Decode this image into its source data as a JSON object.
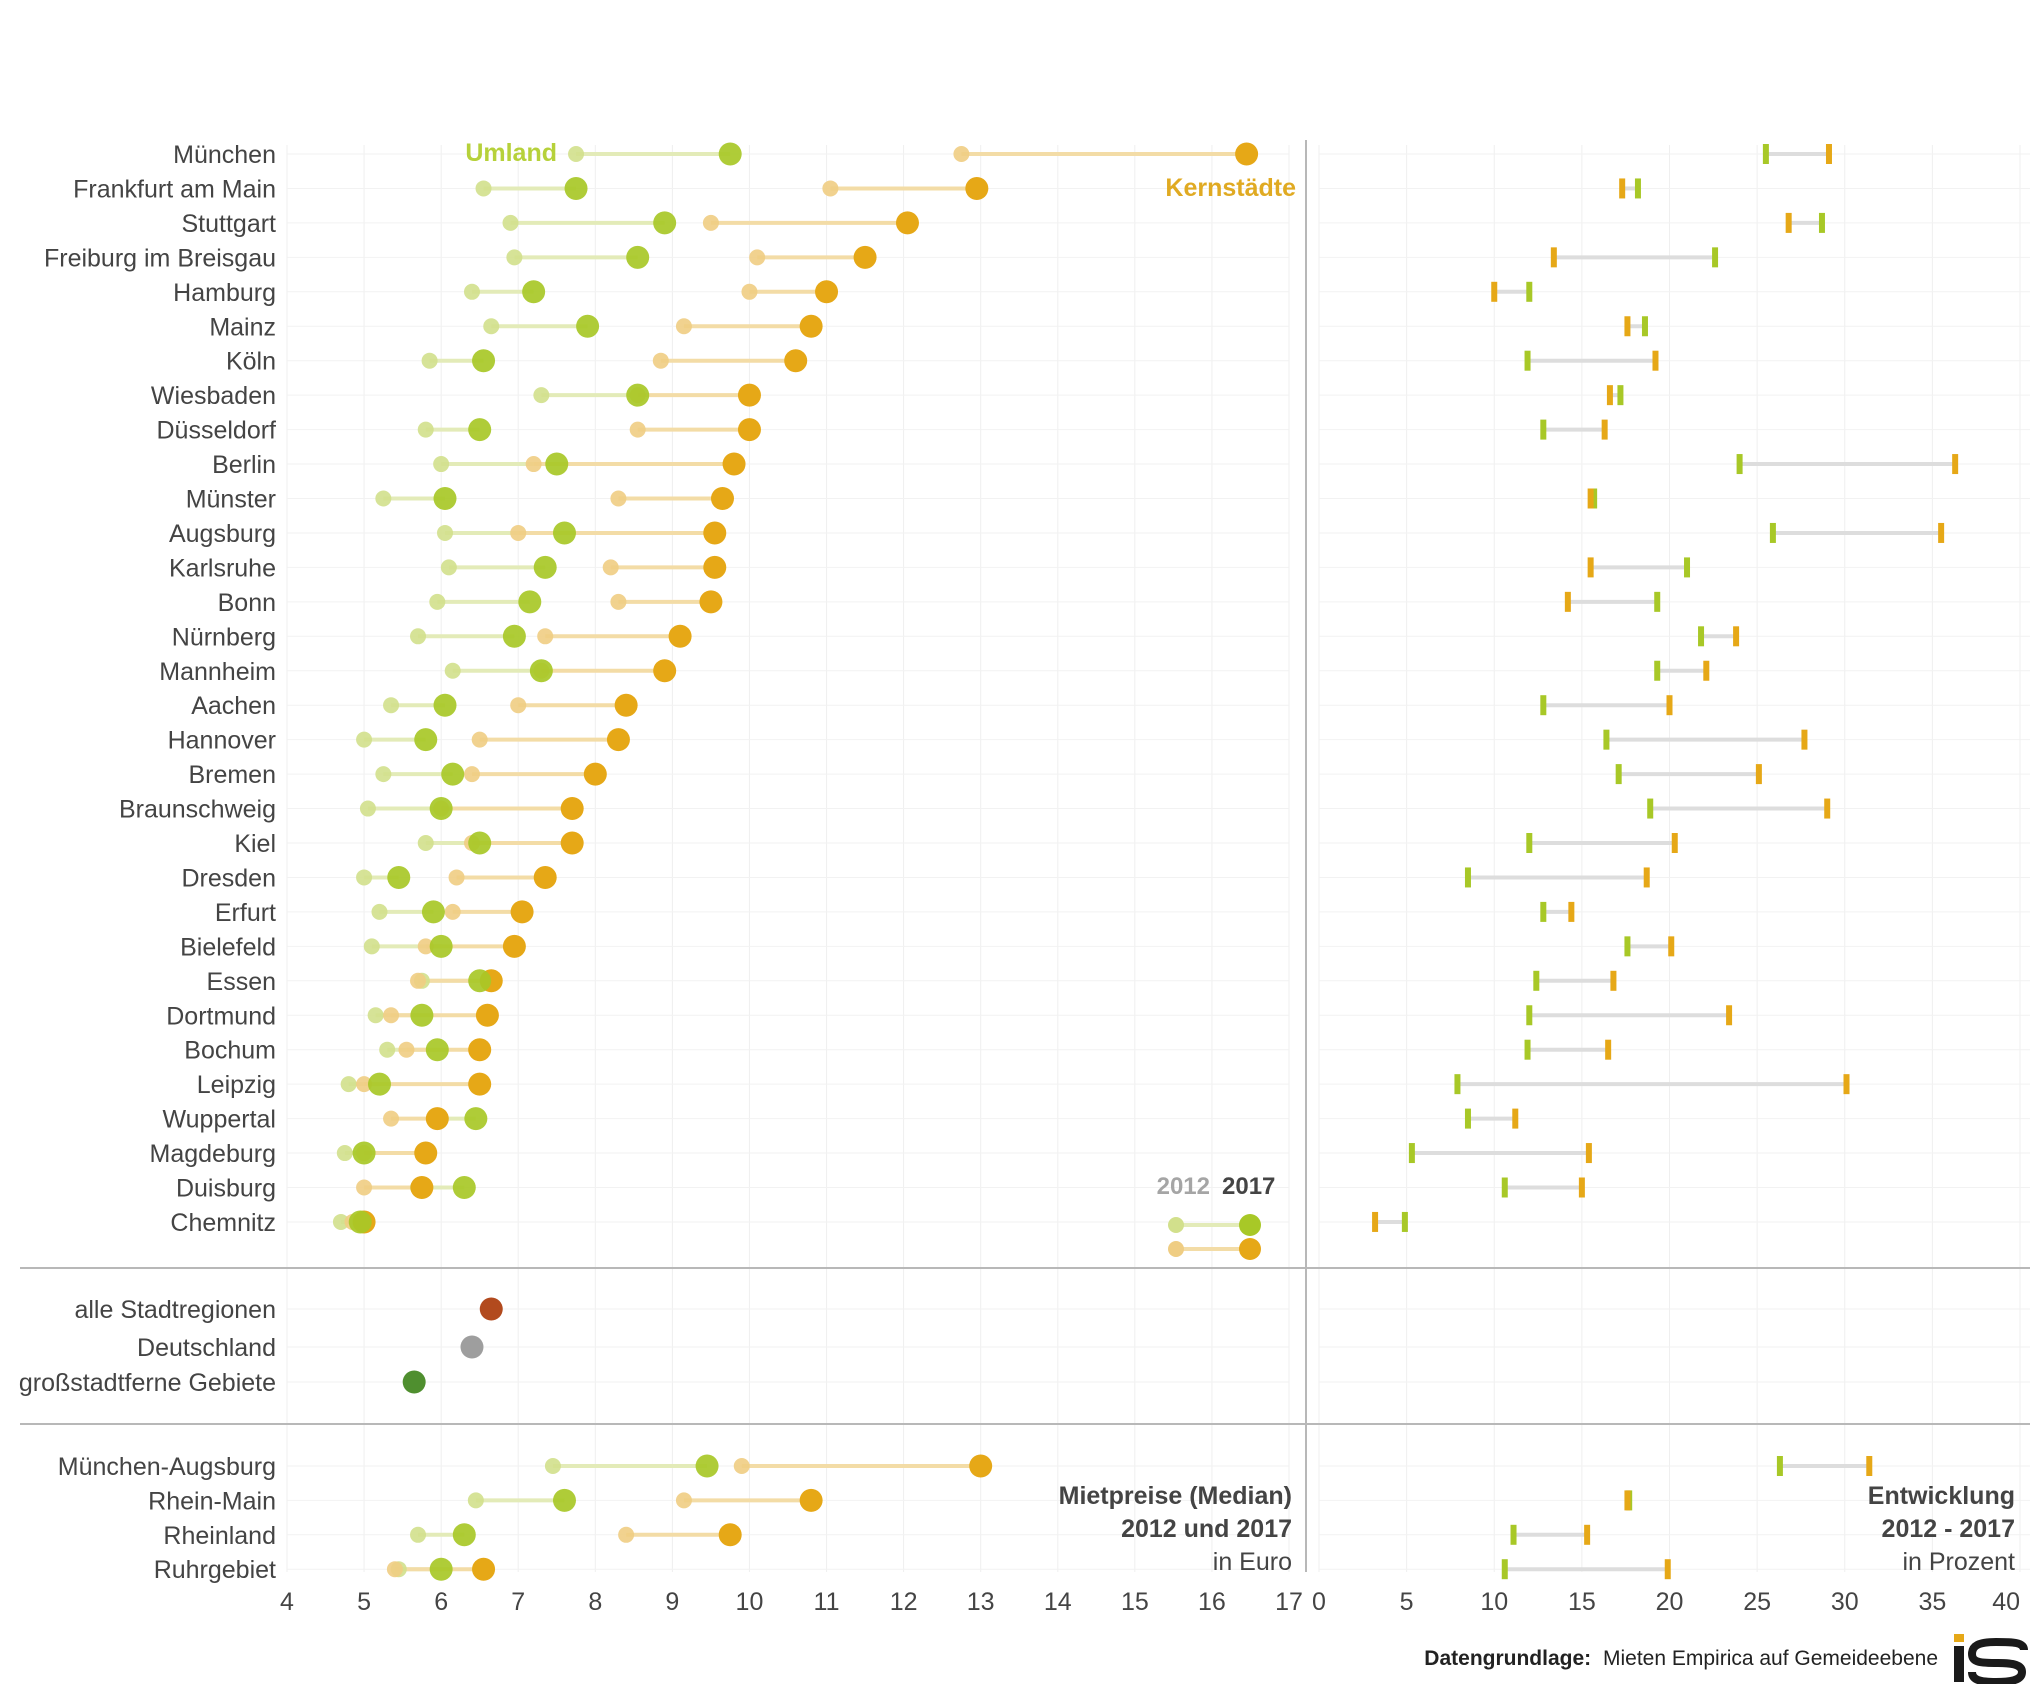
{
  "chart_data": [
    {
      "type": "dumbbell",
      "title": "Mietpreise (Median)",
      "subtitle": "2012 und 2017",
      "unit_note": "in Euro",
      "xlim": [
        4,
        17
      ],
      "xticks": [
        4,
        5,
        6,
        7,
        8,
        9,
        10,
        11,
        12,
        13,
        14,
        15,
        16,
        17
      ],
      "series_labels": {
        "umland": "Umland",
        "kern": "Kernstädte"
      },
      "legend": {
        "year_a": "2012",
        "year_b": "2017"
      },
      "colors": {
        "umland_2017": "#a8c827",
        "umland_2012": "#d2e08c",
        "umland_line": "#e3ebb8",
        "kern_2017": "#e6a817",
        "kern_2012": "#efcd83",
        "kern_line": "#f3dca6",
        "alle": "#b24a1e",
        "deutschland": "#9e9e9e",
        "grossstadtfern": "#4f8f2f",
        "umland_label": "#b6d13a",
        "kern_label": "#e0aa22"
      },
      "cities": [
        {
          "name": "München",
          "u2012": 7.75,
          "u2017": 9.75,
          "k2012": 12.75,
          "k2017": 16.45
        },
        {
          "name": "Frankfurt am Main",
          "u2012": 6.55,
          "u2017": 7.75,
          "k2012": 11.05,
          "k2017": 12.95
        },
        {
          "name": "Stuttgart",
          "u2012": 6.9,
          "u2017": 8.9,
          "k2012": 9.5,
          "k2017": 12.05
        },
        {
          "name": "Freiburg im Breisgau",
          "u2012": 6.95,
          "u2017": 8.55,
          "k2012": 10.1,
          "k2017": 11.5
        },
        {
          "name": "Hamburg",
          "u2012": 6.4,
          "u2017": 7.2,
          "k2012": 10.0,
          "k2017": 11.0
        },
        {
          "name": "Mainz",
          "u2012": 6.65,
          "u2017": 7.9,
          "k2012": 9.15,
          "k2017": 10.8
        },
        {
          "name": "Köln",
          "u2012": 5.85,
          "u2017": 6.55,
          "k2012": 8.85,
          "k2017": 10.6
        },
        {
          "name": "Wiesbaden",
          "u2012": 7.3,
          "u2017": 8.55,
          "k2012": 8.55,
          "k2017": 10.0
        },
        {
          "name": "Düsseldorf",
          "u2012": 5.8,
          "u2017": 6.5,
          "k2012": 8.55,
          "k2017": 10.0
        },
        {
          "name": "Berlin",
          "u2012": 6.0,
          "u2017": 7.5,
          "k2012": 7.2,
          "k2017": 9.8
        },
        {
          "name": "Münster",
          "u2012": 5.25,
          "u2017": 6.05,
          "k2012": 8.3,
          "k2017": 9.65
        },
        {
          "name": "Augsburg",
          "u2012": 6.05,
          "u2017": 7.6,
          "k2012": 7.0,
          "k2017": 9.55
        },
        {
          "name": "Karlsruhe",
          "u2012": 6.1,
          "u2017": 7.35,
          "k2012": 8.2,
          "k2017": 9.55
        },
        {
          "name": "Bonn",
          "u2012": 5.95,
          "u2017": 7.15,
          "k2012": 8.3,
          "k2017": 9.5
        },
        {
          "name": "Nürnberg",
          "u2012": 5.7,
          "u2017": 6.95,
          "k2012": 7.35,
          "k2017": 9.1
        },
        {
          "name": "Mannheim",
          "u2012": 6.15,
          "u2017": 7.3,
          "k2012": 7.3,
          "k2017": 8.9
        },
        {
          "name": "Aachen",
          "u2012": 5.35,
          "u2017": 6.05,
          "k2012": 7.0,
          "k2017": 8.4
        },
        {
          "name": "Hannover",
          "u2012": 5.0,
          "u2017": 5.8,
          "k2012": 6.5,
          "k2017": 8.3
        },
        {
          "name": "Bremen",
          "u2012": 5.25,
          "u2017": 6.15,
          "k2012": 6.4,
          "k2017": 8.0
        },
        {
          "name": "Braunschweig",
          "u2012": 5.05,
          "u2017": 6.0,
          "k2012": 6.0,
          "k2017": 7.7
        },
        {
          "name": "Kiel",
          "u2012": 5.8,
          "u2017": 6.5,
          "k2012": 6.4,
          "k2017": 7.7
        },
        {
          "name": "Dresden",
          "u2012": 5.0,
          "u2017": 5.45,
          "k2012": 6.2,
          "k2017": 7.35
        },
        {
          "name": "Erfurt",
          "u2012": 5.2,
          "u2017": 5.9,
          "k2012": 6.15,
          "k2017": 7.05
        },
        {
          "name": "Bielefeld",
          "u2012": 5.1,
          "u2017": 6.0,
          "k2012": 5.8,
          "k2017": 6.95
        },
        {
          "name": "Essen",
          "u2012": 5.75,
          "u2017": 6.5,
          "k2012": 5.7,
          "k2017": 6.65
        },
        {
          "name": "Dortmund",
          "u2012": 5.15,
          "u2017": 5.75,
          "k2012": 5.35,
          "k2017": 6.6
        },
        {
          "name": "Bochum",
          "u2012": 5.3,
          "u2017": 5.95,
          "k2012": 5.55,
          "k2017": 6.5
        },
        {
          "name": "Leipzig",
          "u2012": 4.8,
          "u2017": 5.2,
          "k2012": 5.0,
          "k2017": 6.5
        },
        {
          "name": "Wuppertal",
          "u2012": 5.95,
          "u2017": 6.45,
          "k2012": 5.35,
          "k2017": 5.95
        },
        {
          "name": "Magdeburg",
          "u2012": 4.75,
          "u2017": 5.0,
          "k2012": 5.0,
          "k2017": 5.8
        },
        {
          "name": "Duisburg",
          "u2012": 5.7,
          "u2017": 6.3,
          "k2012": 5.0,
          "k2017": 5.75
        },
        {
          "name": "Chemnitz",
          "u2012": 4.7,
          "u2017": 4.95,
          "k2012": 4.85,
          "k2017": 5.0
        }
      ],
      "summary": [
        {
          "name": "alle Stadtregionen",
          "value": 6.65,
          "color_key": "alle"
        },
        {
          "name": "Deutschland",
          "value": 6.4,
          "color_key": "deutschland"
        },
        {
          "name": "großstadtferne Gebiete",
          "value": 5.65,
          "color_key": "grossstadtfern"
        }
      ],
      "regions": [
        {
          "name": "München-Augsburg",
          "u2012": 7.45,
          "u2017": 9.45,
          "k2012": 9.9,
          "k2017": 13.0
        },
        {
          "name": "Rhein-Main",
          "u2012": 6.45,
          "u2017": 7.6,
          "k2012": 9.15,
          "k2017": 10.8
        },
        {
          "name": "Rheinland",
          "u2012": 5.7,
          "u2017": 6.3,
          "k2012": 8.4,
          "k2017": 9.75
        },
        {
          "name": "Ruhrgebiet",
          "u2012": 5.45,
          "u2017": 6.0,
          "k2012": 5.4,
          "k2017": 6.55
        }
      ]
    },
    {
      "type": "range",
      "title": "Entwicklung",
      "subtitle": "2012 - 2017",
      "unit_note": "in Prozent",
      "xlim": [
        0,
        40
      ],
      "xticks": [
        0,
        5,
        10,
        15,
        20,
        25,
        30,
        35,
        40
      ],
      "cities": [
        {
          "name": "München",
          "umland": 25.5,
          "kern": 29.1
        },
        {
          "name": "Frankfurt am Main",
          "umland": 18.2,
          "kern": 17.3
        },
        {
          "name": "Stuttgart",
          "umland": 28.7,
          "kern": 26.8
        },
        {
          "name": "Freiburg im Breisgau",
          "umland": 22.6,
          "kern": 13.4
        },
        {
          "name": "Hamburg",
          "umland": 12.0,
          "kern": 10.0
        },
        {
          "name": "Mainz",
          "umland": 18.6,
          "kern": 17.6
        },
        {
          "name": "Köln",
          "umland": 11.9,
          "kern": 19.2
        },
        {
          "name": "Wiesbaden",
          "umland": 17.2,
          "kern": 16.6
        },
        {
          "name": "Düsseldorf",
          "umland": 12.8,
          "kern": 16.3
        },
        {
          "name": "Berlin",
          "umland": 24.0,
          "kern": 36.3
        },
        {
          "name": "Münster",
          "umland": 15.7,
          "kern": 15.5
        },
        {
          "name": "Augsburg",
          "umland": 25.9,
          "kern": 35.5
        },
        {
          "name": "Karlsruhe",
          "umland": 21.0,
          "kern": 15.5
        },
        {
          "name": "Bonn",
          "umland": 19.3,
          "kern": 14.2
        },
        {
          "name": "Nürnberg",
          "umland": 21.8,
          "kern": 23.8
        },
        {
          "name": "Mannheim",
          "umland": 19.3,
          "kern": 22.1
        },
        {
          "name": "Aachen",
          "umland": 12.8,
          "kern": 20.0
        },
        {
          "name": "Hannover",
          "umland": 16.4,
          "kern": 27.7
        },
        {
          "name": "Bremen",
          "umland": 17.1,
          "kern": 25.1
        },
        {
          "name": "Braunschweig",
          "umland": 18.9,
          "kern": 29.0
        },
        {
          "name": "Kiel",
          "umland": 12.0,
          "kern": 20.3
        },
        {
          "name": "Dresden",
          "umland": 8.5,
          "kern": 18.7
        },
        {
          "name": "Erfurt",
          "umland": 12.8,
          "kern": 14.4
        },
        {
          "name": "Bielefeld",
          "umland": 17.6,
          "kern": 20.1
        },
        {
          "name": "Essen",
          "umland": 12.4,
          "kern": 16.8
        },
        {
          "name": "Dortmund",
          "umland": 12.0,
          "kern": 23.4
        },
        {
          "name": "Bochum",
          "umland": 11.9,
          "kern": 16.5
        },
        {
          "name": "Leipzig",
          "umland": 7.9,
          "kern": 30.1
        },
        {
          "name": "Wuppertal",
          "umland": 8.5,
          "kern": 11.2
        },
        {
          "name": "Magdeburg",
          "umland": 5.3,
          "kern": 15.4
        },
        {
          "name": "Duisburg",
          "umland": 10.6,
          "kern": 15.0
        },
        {
          "name": "Chemnitz",
          "umland": 4.9,
          "kern": 3.2
        }
      ],
      "regions": [
        {
          "name": "München-Augsburg",
          "umland": 26.3,
          "kern": 31.4
        },
        {
          "name": "Rhein-Main",
          "umland": 17.7,
          "kern": 17.6
        },
        {
          "name": "Rheinland",
          "umland": 11.1,
          "kern": 15.3
        },
        {
          "name": "Ruhrgebiet",
          "umland": 10.6,
          "kern": 19.9
        }
      ]
    }
  ],
  "footer": {
    "source_label": "Datengrundlage:",
    "source_text": "Mieten Empirica auf Gemeideebene",
    "logo_alt": "iS"
  }
}
